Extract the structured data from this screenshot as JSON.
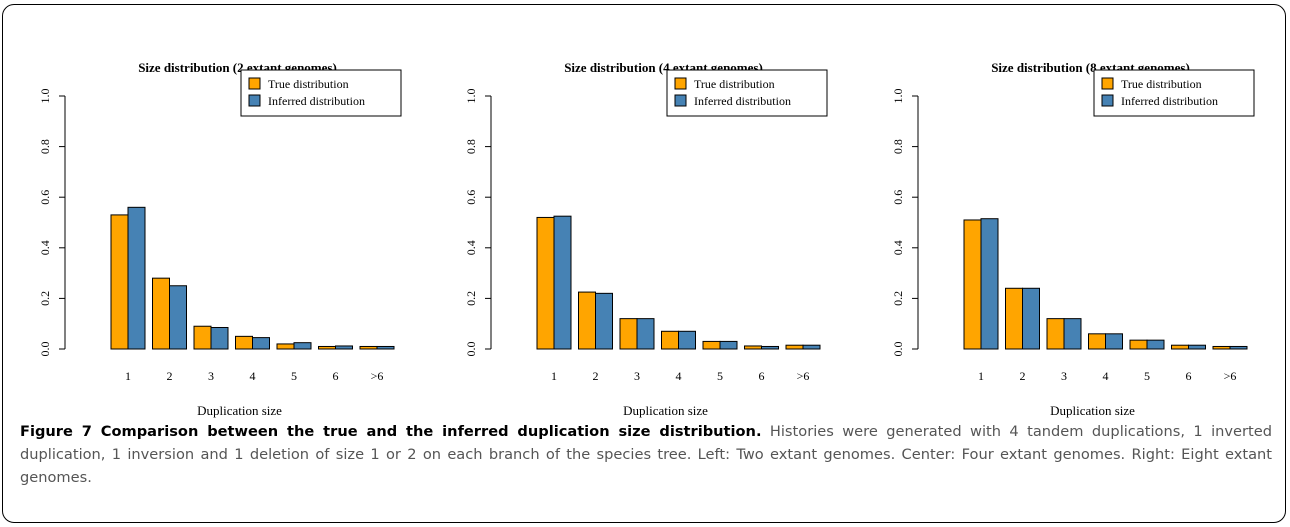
{
  "figure": {
    "label": "Figure 7",
    "title": "Comparison between the true and the inferred duplication size distribution.",
    "text": "Histories were generated with 4 tandem duplications, 1 inverted duplication, 1 inversion and 1 deletion of size 1 or 2 on each branch of the species tree. Left: Two extant genomes. Center: Four extant genomes. Right: Eight extant genomes."
  },
  "colors": {
    "true": "#FFA500",
    "inferred": "#4682B4"
  },
  "chart_data": [
    {
      "type": "bar",
      "title": "Size distribution (2 extant genomes)",
      "xlabel": "Duplication size",
      "ylabel": "",
      "ylim": [
        0,
        1
      ],
      "yticks": [
        "0.0",
        "0.2",
        "0.4",
        "0.6",
        "0.8",
        "1.0"
      ],
      "categories": [
        "1",
        "2",
        "3",
        "4",
        "5",
        "6",
        ">6"
      ],
      "legend": "top-right",
      "series": [
        {
          "name": "True distribution",
          "color": "#FFA500",
          "values": [
            0.53,
            0.28,
            0.09,
            0.05,
            0.02,
            0.01,
            0.01
          ]
        },
        {
          "name": "Inferred distribution",
          "color": "#4682B4",
          "values": [
            0.56,
            0.25,
            0.085,
            0.045,
            0.025,
            0.012,
            0.01
          ]
        }
      ]
    },
    {
      "type": "bar",
      "title": "Size distribution (4 extant genomes)",
      "xlabel": "Duplication size",
      "ylabel": "",
      "ylim": [
        0,
        1
      ],
      "yticks": [
        "0.0",
        "0.2",
        "0.4",
        "0.6",
        "0.8",
        "1.0"
      ],
      "categories": [
        "1",
        "2",
        "3",
        "4",
        "5",
        "6",
        ">6"
      ],
      "legend": "top-right",
      "series": [
        {
          "name": "True distribution",
          "color": "#FFA500",
          "values": [
            0.52,
            0.225,
            0.12,
            0.07,
            0.03,
            0.012,
            0.015
          ]
        },
        {
          "name": "Inferred distribution",
          "color": "#4682B4",
          "values": [
            0.525,
            0.22,
            0.12,
            0.07,
            0.03,
            0.01,
            0.015
          ]
        }
      ]
    },
    {
      "type": "bar",
      "title": "Size distribution (8 extant genomes)",
      "xlabel": "Duplication size",
      "ylabel": "",
      "ylim": [
        0,
        1
      ],
      "yticks": [
        "0.0",
        "0.2",
        "0.4",
        "0.6",
        "0.8",
        "1.0"
      ],
      "categories": [
        "1",
        "2",
        "3",
        "4",
        "5",
        "6",
        ">6"
      ],
      "legend": "top-right",
      "series": [
        {
          "name": "True distribution",
          "color": "#FFA500",
          "values": [
            0.51,
            0.24,
            0.12,
            0.06,
            0.035,
            0.015,
            0.01
          ]
        },
        {
          "name": "Inferred distribution",
          "color": "#4682B4",
          "values": [
            0.515,
            0.24,
            0.12,
            0.06,
            0.035,
            0.015,
            0.01
          ]
        }
      ]
    }
  ]
}
